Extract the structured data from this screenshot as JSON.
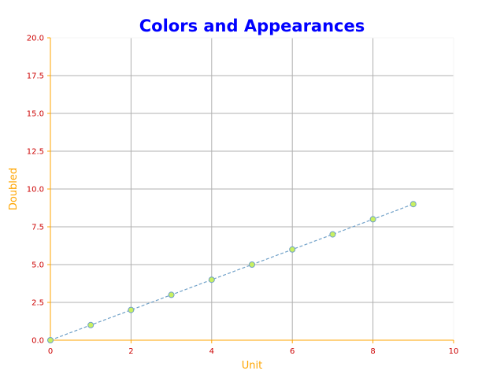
{
  "colors": {
    "title": "#0000ff",
    "axis_label": "#ffa500",
    "tick_label": "#cc0000",
    "axis_line": "#ffa500",
    "grid": "#b0b0b0",
    "line": "#6fa0c8",
    "marker_fill": "#c8f060",
    "marker_edge": "#6fa0c8"
  },
  "chart_data": {
    "type": "line",
    "title": "Colors and Appearances",
    "xlabel": "Unit",
    "ylabel": "Doubled",
    "xlim": [
      0,
      10
    ],
    "ylim": [
      0,
      20
    ],
    "x_ticks": [
      0,
      2,
      4,
      6,
      8,
      10
    ],
    "y_ticks": [
      0,
      2.5,
      5,
      7.5,
      10,
      12.5,
      15,
      17.5,
      20
    ],
    "x_tick_labels": [
      "0",
      "2",
      "4",
      "6",
      "8",
      "10"
    ],
    "y_tick_labels": [
      "0.0",
      "2.5",
      "5.0",
      "7.5",
      "10.0",
      "12.5",
      "15.0",
      "17.5",
      "20.0"
    ],
    "grid": true,
    "line_style": "dashed",
    "series": [
      {
        "x": [
          0,
          1,
          2,
          3,
          4,
          5,
          6,
          7,
          8,
          9
        ],
        "y": [
          0,
          1,
          2,
          3,
          4,
          5,
          6,
          7,
          8,
          9
        ]
      }
    ]
  }
}
